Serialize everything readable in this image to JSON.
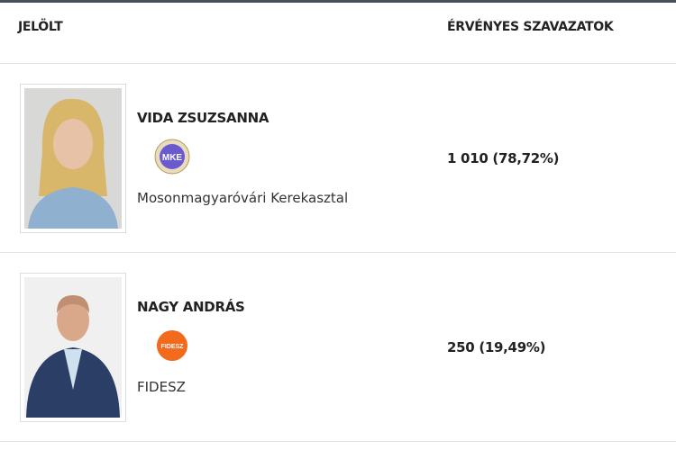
{
  "table": {
    "headers": {
      "candidate": "JELÖLT",
      "votes": "ÉRVÉNYES SZAVAZATOK"
    },
    "rows": [
      {
        "name": "VIDA ZSUZSANNA",
        "party": "Mosonmagyaróvári Kerekasztal",
        "party_logo": "MKE",
        "logo_color": "#6a5acd",
        "votes": "1 010 (78,72%)"
      },
      {
        "name": "NAGY ANDRÁS",
        "party": "FIDESZ",
        "party_logo": "FIDESZ",
        "logo_color": "#f26b1d",
        "votes": "250 (19,49%)"
      }
    ]
  }
}
